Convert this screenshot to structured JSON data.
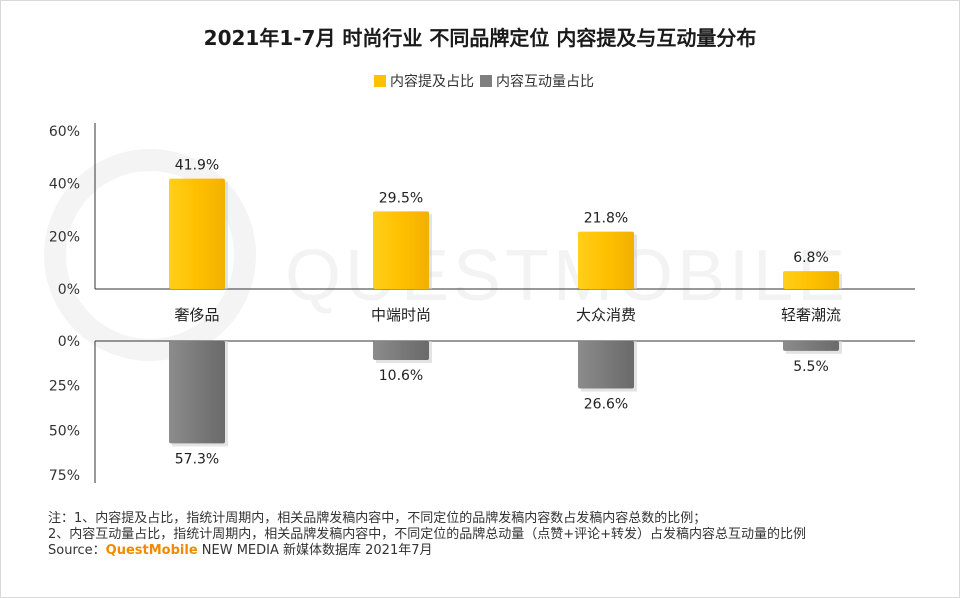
{
  "title": "2021年1-7月 时尚行业 不同品牌定位 内容提及与互动量分布",
  "colors": {
    "series1": "#ffc000",
    "series2": "#7f7f7f",
    "axis": "#333333"
  },
  "watermark": "QUESTMOBILE",
  "chart_data": {
    "type": "bar",
    "categories": [
      "奢侈品",
      "中端时尚",
      "大众消费",
      "轻奢潮流"
    ],
    "series": [
      {
        "name": "内容提及占比",
        "values": [
          41.9,
          29.5,
          21.8,
          6.8
        ],
        "labels": [
          "41.9%",
          "29.5%",
          "21.8%",
          "6.8%"
        ]
      },
      {
        "name": "内容互动量占比",
        "values": [
          57.3,
          10.6,
          26.6,
          5.5
        ],
        "labels": [
          "57.3%",
          "10.6%",
          "26.6%",
          "5.5%"
        ]
      }
    ],
    "top_axis": {
      "ylim": [
        0,
        60
      ],
      "ticks": [
        "0%",
        "20%",
        "40%",
        "60%"
      ]
    },
    "bottom_axis": {
      "ylim": [
        0,
        75
      ],
      "ticks": [
        "0%",
        "25%",
        "50%",
        "75%"
      ]
    }
  },
  "notes": {
    "line1": "注：1、内容提及占比，指统计周期内，相关品牌发稿内容中，不同定位的品牌发稿内容数占发稿内容总数的比例；",
    "line2": "2、内容互动量占比，指统计周期内，相关品牌发稿内容中，不同定位的品牌总动量（点赞+评论+转发）占发稿内容总互动量的比例",
    "source_prefix": "Source：",
    "source_brand": "QuestMobile",
    "source_suffix": " NEW MEDIA 新媒体数据库 2021年7月"
  }
}
